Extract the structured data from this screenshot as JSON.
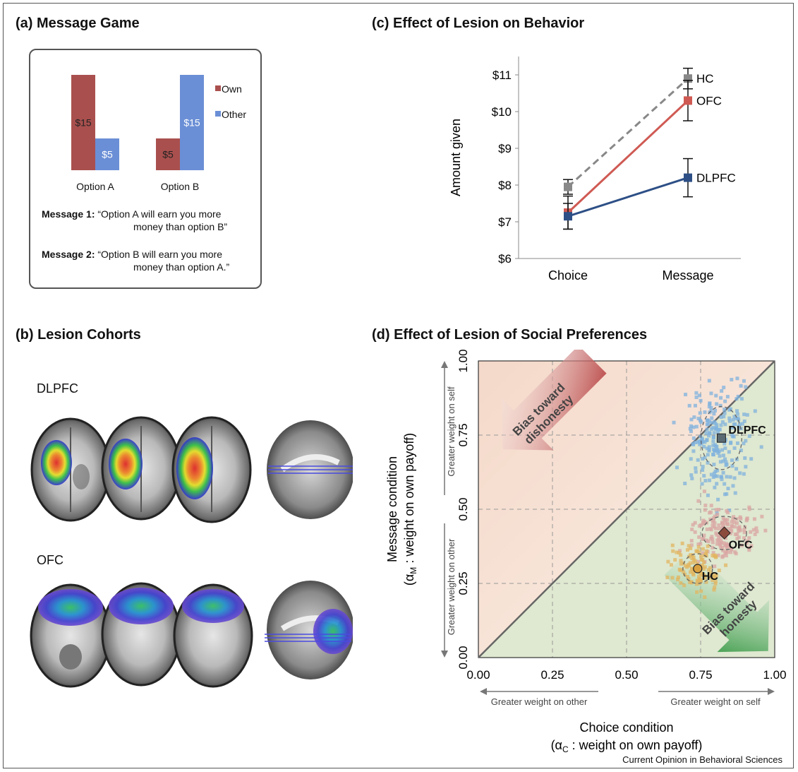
{
  "credit": "Current Opinion in Behavioral Sciences",
  "panel_a": {
    "title": "(a)  Message Game",
    "legend": [
      {
        "name": "Own",
        "color": "#a9504e"
      },
      {
        "name": "Other",
        "color": "#6b8fd6"
      }
    ],
    "options": [
      {
        "label": "Option A",
        "own": 15,
        "other": 5,
        "own_label": "$15",
        "other_label": "$5"
      },
      {
        "label": "Option B",
        "own": 5,
        "other": 15,
        "own_label": "$5",
        "other_label": "$15"
      }
    ],
    "message1_label": "Message 1:",
    "message1_text": "“Option A will earn you more",
    "message1_text2": "money than option B”",
    "message2_label": "Message 2:",
    "message2_text": "“Option B will earn you  more",
    "message2_text2": "money than option A.”"
  },
  "panel_b": {
    "title": "(b)  Lesion Cohorts",
    "cohort1": "DLPFC",
    "cohort2": "OFC"
  },
  "chart_data": [
    {
      "type": "line",
      "title": "(c)  Effect of Lesion on Behavior",
      "ylabel": "Amount given",
      "categories": [
        "Choice",
        "Message"
      ],
      "ylim": [
        6,
        11.5
      ],
      "yticks": [
        "$6",
        "$7",
        "$8",
        "$9",
        "$10",
        "$11"
      ],
      "series": [
        {
          "name": "HC",
          "values": [
            7.95,
            10.9
          ],
          "errors": [
            0.2,
            0.28
          ],
          "color": "#888888",
          "dash": true
        },
        {
          "name": "OFC",
          "values": [
            7.25,
            10.3
          ],
          "errors": [
            0.45,
            0.55
          ],
          "color": "#cf5a53",
          "dash": false
        },
        {
          "name": "DLPFC",
          "values": [
            7.15,
            8.2
          ],
          "errors": [
            0.35,
            0.52
          ],
          "color": "#2d4f86",
          "dash": false
        }
      ]
    },
    {
      "type": "scatter",
      "title": "(d)  Effect of Lesion of Social Preferences",
      "xlabel": "Choice condition",
      "xlabel_sub": "(α",
      "xlabel_sub_index": "C",
      "xlabel_sub_rest": " : weight on own payoff)",
      "ylabel": "Message condition",
      "ylabel_sub": "(α",
      "ylabel_sub_index": "M",
      "ylabel_sub_rest": " : weight on own payoff)",
      "xlim": [
        0,
        1
      ],
      "ylim": [
        0,
        1
      ],
      "ticks": [
        "0.00",
        "0.25",
        "0.50",
        "0.75",
        "1.00"
      ],
      "x_left_arrow": "Greater weight on other",
      "x_right_arrow": "Greater weight on self",
      "y_top_arrow": "Greater weight on self",
      "y_bottom_arrow": "Greater weight on other",
      "upper_note_line1": "Bias toward",
      "upper_note_line2": "dishonesty",
      "lower_note_line1": "Bias toward",
      "lower_note_line2": "honesty",
      "series": [
        {
          "name": "DLPFC",
          "x": 0.82,
          "y": 0.74,
          "color": "#7fb1dd",
          "mean_color": "#5a6b73"
        },
        {
          "name": "OFC",
          "x": 0.83,
          "y": 0.42,
          "color": "#d9a5a3",
          "mean_color": "#8a4a3c"
        },
        {
          "name": "HC",
          "x": 0.74,
          "y": 0.3,
          "color": "#e1b560",
          "mean_color": "#d9a040"
        }
      ]
    }
  ]
}
